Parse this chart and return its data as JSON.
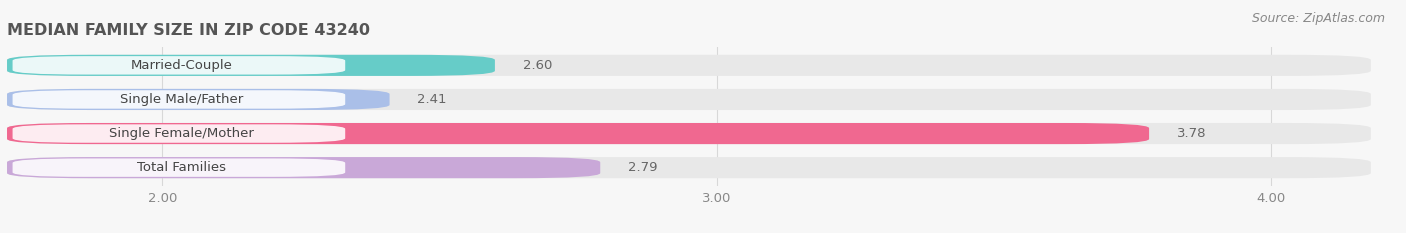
{
  "title": "Median Family Size in Zip Code 43240",
  "source": "Source: ZipAtlas.com",
  "categories": [
    "Married-Couple",
    "Single Male/Father",
    "Single Female/Mother",
    "Total Families"
  ],
  "values": [
    2.6,
    2.41,
    3.78,
    2.79
  ],
  "bar_colors": [
    "#66ccc8",
    "#aabfe8",
    "#f06890",
    "#c9a8d8"
  ],
  "bar_bg_color": "#e8e8e8",
  "bar_height": 0.62,
  "xlim_left": 1.72,
  "xlim_right": 4.18,
  "xticks": [
    2.0,
    3.0,
    4.0
  ],
  "xtick_labels": [
    "2.00",
    "3.00",
    "4.00"
  ],
  "background_color": "#f7f7f7",
  "title_fontsize": 11.5,
  "label_fontsize": 9.5,
  "value_fontsize": 9.5,
  "source_fontsize": 9,
  "title_color": "#555555",
  "label_color": "#444444",
  "value_color": "#666666",
  "source_color": "#888888",
  "grid_color": "#d8d8d8"
}
